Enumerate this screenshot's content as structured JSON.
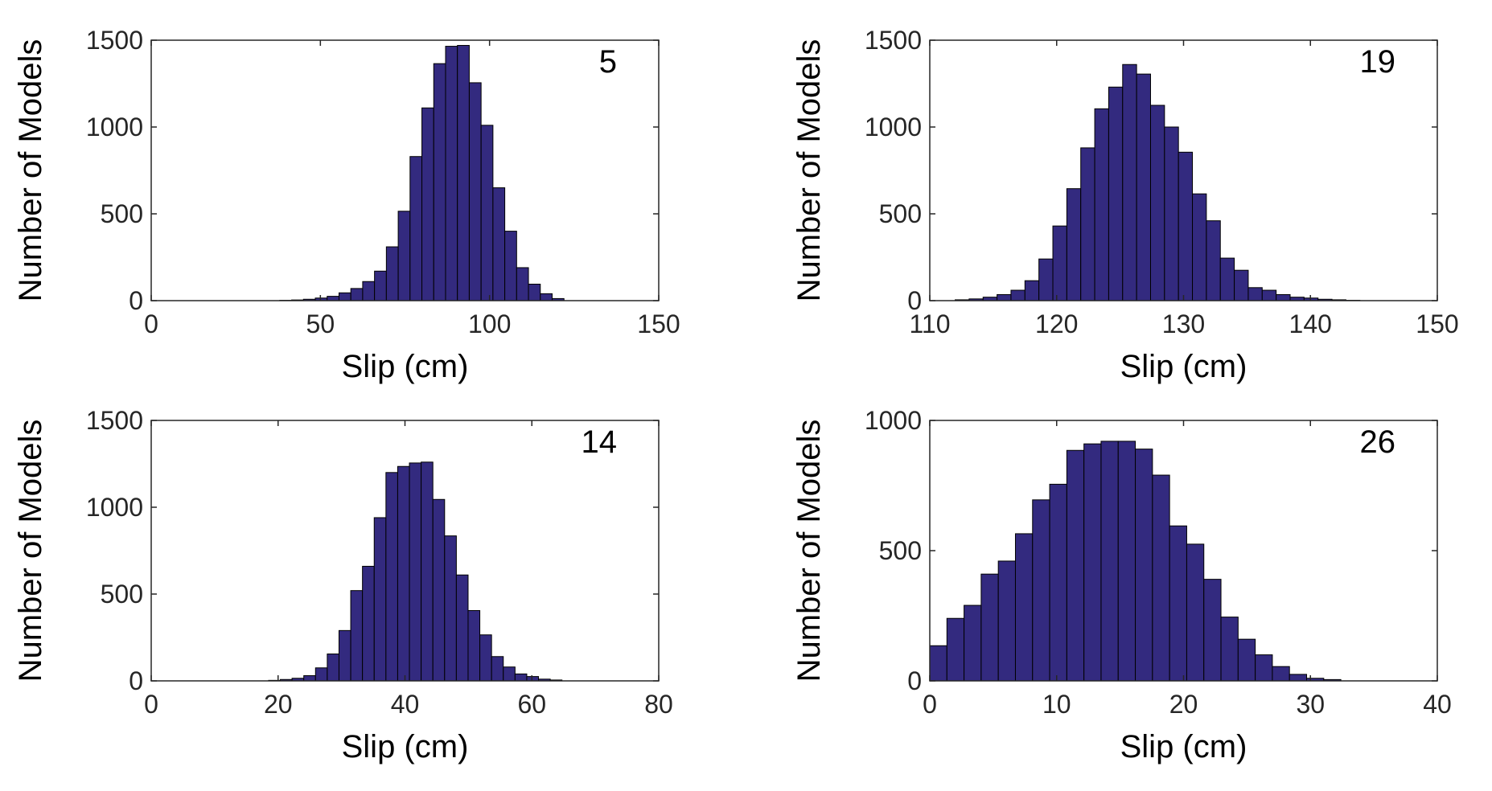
{
  "chart_data": [
    {
      "type": "bar",
      "panel_label": "5",
      "xlabel": "Slip (cm)",
      "ylabel": "Number of Models",
      "xlim": [
        0,
        150
      ],
      "ylim": [
        0,
        1500
      ],
      "xticks": [
        0,
        50,
        100,
        150
      ],
      "yticks": [
        0,
        500,
        1000,
        1500
      ],
      "bin_width": 3.5,
      "x": [
        38,
        41.5,
        45,
        48.5,
        52,
        55.5,
        59,
        62.5,
        66,
        69.5,
        73,
        76.5,
        80,
        83.5,
        87,
        90.5,
        94,
        97.5,
        101,
        104.5,
        108,
        111.5,
        115,
        118.5
      ],
      "values": [
        2,
        4,
        8,
        15,
        25,
        45,
        70,
        110,
        170,
        310,
        515,
        830,
        1110,
        1365,
        1465,
        1470,
        1255,
        1010,
        650,
        400,
        190,
        95,
        40,
        12
      ]
    },
    {
      "type": "bar",
      "panel_label": "19",
      "xlabel": "Slip (cm)",
      "ylabel": "Number of Models",
      "xlim": [
        110,
        150
      ],
      "ylim": [
        0,
        1500
      ],
      "xticks": [
        110,
        120,
        130,
        140,
        150
      ],
      "yticks": [
        0,
        500,
        1000,
        1500
      ],
      "bin_width": 1.1,
      "x": [
        112,
        113.1,
        114.2,
        115.3,
        116.4,
        117.5,
        118.6,
        119.7,
        120.8,
        121.9,
        123,
        124.1,
        125.2,
        126.3,
        127.4,
        128.5,
        129.6,
        130.7,
        131.8,
        132.9,
        134,
        135.1,
        136.2,
        137.3,
        138.4,
        139.5,
        140.6,
        141.7,
        142.8
      ],
      "values": [
        5,
        10,
        20,
        35,
        60,
        115,
        240,
        430,
        645,
        880,
        1105,
        1230,
        1360,
        1305,
        1125,
        1000,
        855,
        615,
        460,
        245,
        175,
        75,
        60,
        35,
        20,
        15,
        8,
        5,
        2
      ]
    },
    {
      "type": "bar",
      "panel_label": "14",
      "xlabel": "Slip (cm)",
      "ylabel": "Number of Models",
      "xlim": [
        0,
        80
      ],
      "ylim": [
        0,
        1500
      ],
      "xticks": [
        0,
        20,
        40,
        60,
        80
      ],
      "yticks": [
        0,
        500,
        1000,
        1500
      ],
      "bin_width": 1.85,
      "x": [
        18.5,
        20.35,
        22.2,
        24.05,
        25.9,
        27.75,
        29.6,
        31.45,
        33.3,
        35.15,
        37,
        38.85,
        40.7,
        42.55,
        44.4,
        46.25,
        48.1,
        49.95,
        51.8,
        53.65,
        55.5,
        57.35,
        59.2,
        61.05,
        62.9
      ],
      "values": [
        3,
        8,
        15,
        30,
        75,
        155,
        290,
        520,
        660,
        940,
        1200,
        1235,
        1255,
        1260,
        1045,
        835,
        610,
        405,
        265,
        140,
        80,
        40,
        25,
        10,
        5
      ]
    },
    {
      "type": "bar",
      "panel_label": "26",
      "xlabel": "Slip (cm)",
      "ylabel": "Number of Models",
      "xlim": [
        0,
        40
      ],
      "ylim": [
        0,
        1000
      ],
      "xticks": [
        0,
        10,
        20,
        30,
        40
      ],
      "yticks": [
        0,
        500,
        1000
      ],
      "bin_width": 1.35,
      "x": [
        0,
        1.35,
        2.7,
        4.05,
        5.4,
        6.75,
        8.1,
        9.45,
        10.8,
        12.15,
        13.5,
        14.85,
        16.2,
        17.55,
        18.9,
        20.25,
        21.6,
        22.95,
        24.3,
        25.65,
        27,
        28.35,
        29.7,
        31.05
      ],
      "values": [
        135,
        240,
        290,
        410,
        460,
        565,
        695,
        755,
        885,
        910,
        920,
        920,
        890,
        790,
        595,
        525,
        390,
        245,
        160,
        100,
        55,
        25,
        10,
        5
      ]
    }
  ],
  "colors": {
    "bar_fill": "#332a7f",
    "bar_edge": "#000000",
    "axis": "#262626"
  }
}
